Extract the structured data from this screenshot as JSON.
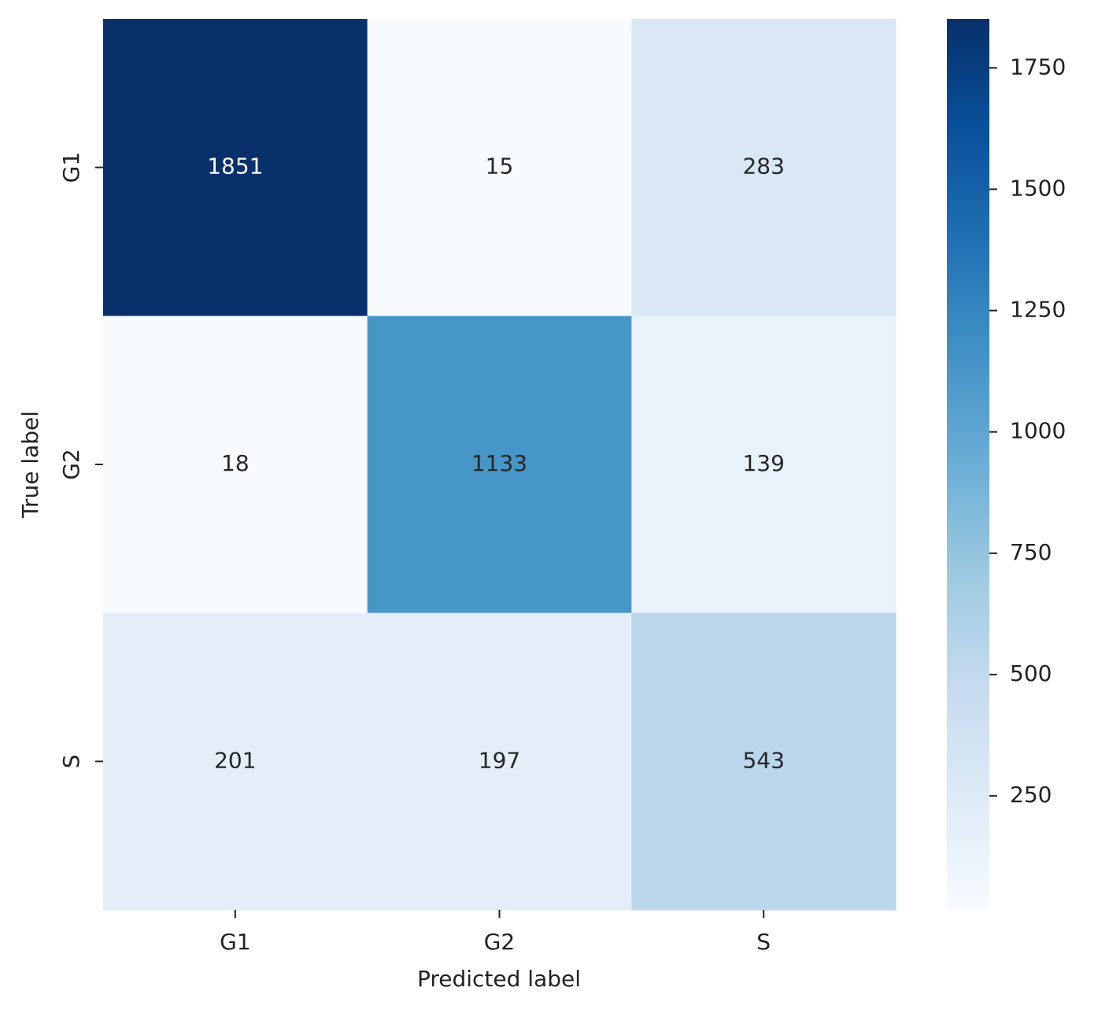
{
  "chart_data": {
    "type": "heatmap",
    "x_categories": [
      "G1",
      "G2",
      "S"
    ],
    "y_categories": [
      "G1",
      "G2",
      "S"
    ],
    "values": [
      [
        1851,
        15,
        283
      ],
      [
        18,
        1133,
        139
      ],
      [
        201,
        197,
        543
      ]
    ],
    "xlabel": "Predicted label",
    "ylabel": "True label",
    "colormap": "Blues",
    "colorbar_lim": [
      15,
      1851
    ],
    "colorbar_ticks": [
      250,
      500,
      750,
      1000,
      1250,
      1500,
      1750
    ]
  }
}
